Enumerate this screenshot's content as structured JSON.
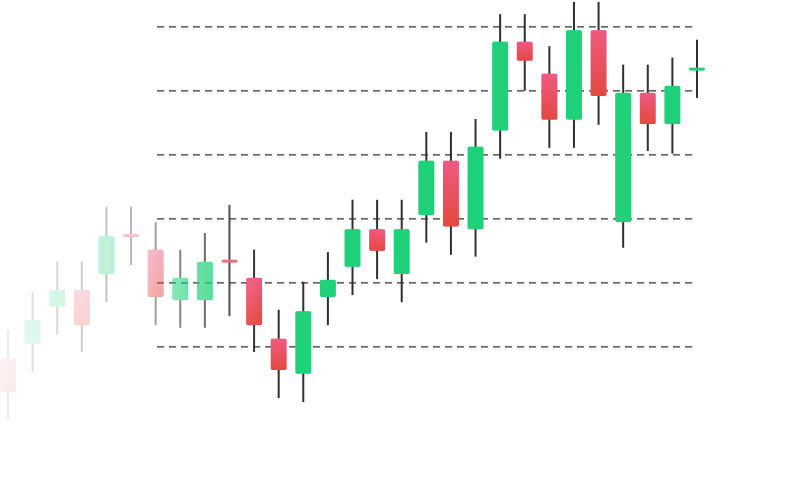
{
  "chart_data": {
    "type": "candlestick",
    "open": [
      8.3,
      10.5,
      16.3,
      18.9,
      21.4,
      27.4,
      25.2,
      17.3,
      17.3,
      23.4,
      20.8,
      11.3,
      5.8,
      17.8,
      22.5,
      28.4,
      21.4,
      30.6,
      39.1,
      28.4,
      43.8,
      57.7,
      52.7,
      45.5,
      59.5,
      29.5,
      49.7,
      44.8,
      53.3
    ],
    "high": [
      12.7,
      18.6,
      23.3,
      23.3,
      31.9,
      31.9,
      29.5,
      25.2,
      27.8,
      32.2,
      25.2,
      15.8,
      20.2,
      24.8,
      33.0,
      33.0,
      33.0,
      43.6,
      43.6,
      45.6,
      62.0,
      62.0,
      57.0,
      63.9,
      63.9,
      54.1,
      54.1,
      55.2,
      58.0
    ],
    "low": [
      -1.4,
      6.1,
      11.9,
      9.2,
      17.0,
      22.8,
      13.4,
      13.0,
      13.0,
      14.8,
      9.2,
      2.0,
      1.4,
      13.4,
      18.1,
      20.6,
      17.0,
      26.3,
      24.4,
      24.1,
      39.4,
      50.0,
      41.1,
      41.1,
      44.7,
      25.5,
      40.6,
      40.2,
      48.9
    ],
    "close": [
      3.0,
      14.2,
      18.9,
      13.4,
      27.3,
      27.3,
      17.8,
      20.8,
      23.3,
      23.3,
      13.4,
      6.4,
      15.6,
      20.5,
      28.4,
      25.0,
      28.4,
      39.1,
      28.8,
      41.3,
      57.7,
      54.7,
      45.5,
      59.5,
      49.2,
      49.7,
      44.8,
      50.8,
      53.4
    ],
    "up_color": "#1fd27a",
    "down_color": "#e8474f",
    "ylim": [
      -12.2,
      64.2
    ],
    "yticks": [
      10,
      20,
      30,
      40,
      50,
      60
    ],
    "grid": true
  }
}
